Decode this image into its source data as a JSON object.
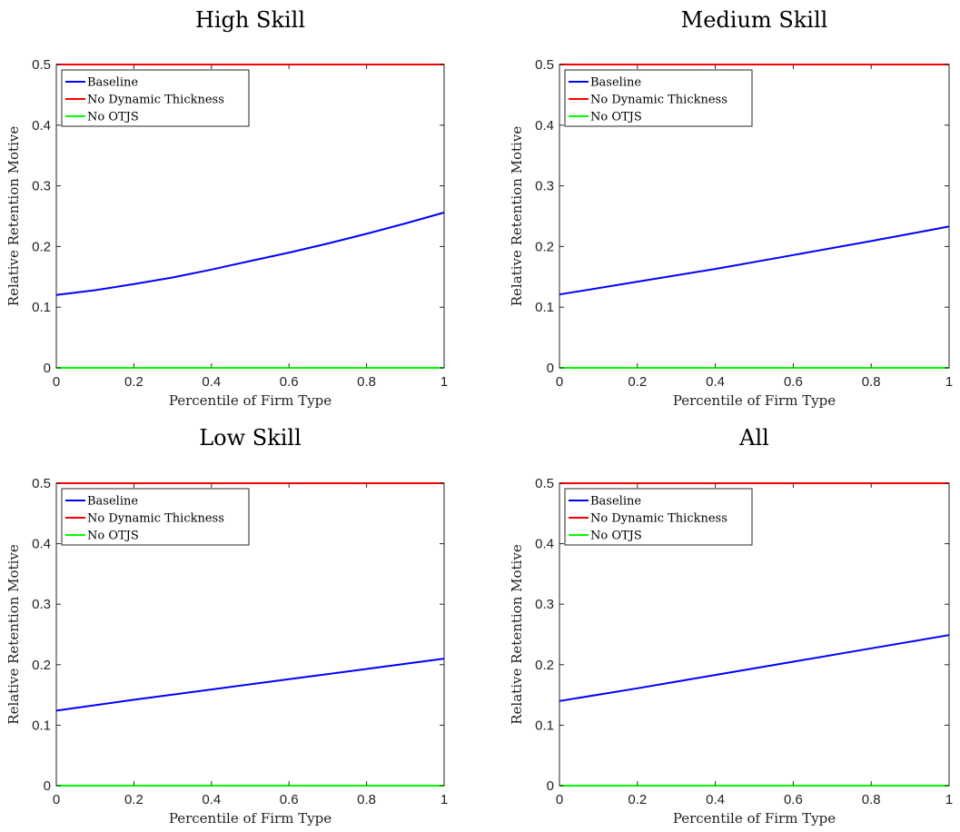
{
  "chart_data": [
    {
      "type": "line",
      "title": "High Skill",
      "xlabel": "Percentile of Firm Type",
      "ylabel": "Relative Retention Motive",
      "xlim": [
        0,
        1
      ],
      "ylim": [
        0,
        0.5
      ],
      "xticks": [
        "0",
        "0.2",
        "0.4",
        "0.6",
        "0.8",
        "1"
      ],
      "yticks": [
        "0",
        "0.1",
        "0.2",
        "0.3",
        "0.4",
        "0.5"
      ],
      "legend_position": "top-left",
      "grid": false,
      "series": [
        {
          "name": "Baseline",
          "color": "#0000ff",
          "x": [
            0,
            0.1,
            0.2,
            0.3,
            0.4,
            0.5,
            0.6,
            0.7,
            0.8,
            0.9,
            1
          ],
          "y": [
            0.12,
            0.128,
            0.138,
            0.149,
            0.162,
            0.176,
            0.19,
            0.205,
            0.221,
            0.238,
            0.256
          ]
        },
        {
          "name": "No Dynamic Thickness",
          "color": "#ff0000",
          "x": [
            0,
            1
          ],
          "y": [
            0.5,
            0.5
          ]
        },
        {
          "name": "No OTJS",
          "color": "#00ff00",
          "x": [
            0,
            1
          ],
          "y": [
            0,
            0
          ]
        }
      ]
    },
    {
      "type": "line",
      "title": "Medium Skill",
      "xlabel": "Percentile of Firm Type",
      "ylabel": "Relative Retention Motive",
      "xlim": [
        0,
        1
      ],
      "ylim": [
        0,
        0.5
      ],
      "xticks": [
        "0",
        "0.2",
        "0.4",
        "0.6",
        "0.8",
        "1"
      ],
      "yticks": [
        "0",
        "0.1",
        "0.2",
        "0.3",
        "0.4",
        "0.5"
      ],
      "legend_position": "top-left",
      "grid": false,
      "series": [
        {
          "name": "Baseline",
          "color": "#0000ff",
          "x": [
            0,
            0.2,
            0.4,
            0.6,
            0.8,
            1
          ],
          "y": [
            0.121,
            0.142,
            0.163,
            0.186,
            0.209,
            0.233
          ]
        },
        {
          "name": "No Dynamic Thickness",
          "color": "#ff0000",
          "x": [
            0,
            1
          ],
          "y": [
            0.5,
            0.5
          ]
        },
        {
          "name": "No OTJS",
          "color": "#00ff00",
          "x": [
            0,
            1
          ],
          "y": [
            0,
            0
          ]
        }
      ]
    },
    {
      "type": "line",
      "title": "Low Skill",
      "xlabel": "Percentile of Firm Type",
      "ylabel": "Relative Retention Motive",
      "xlim": [
        0,
        1
      ],
      "ylim": [
        0,
        0.5
      ],
      "xticks": [
        "0",
        "0.2",
        "0.4",
        "0.6",
        "0.8",
        "1"
      ],
      "yticks": [
        "0",
        "0.1",
        "0.2",
        "0.3",
        "0.4",
        "0.5"
      ],
      "legend_position": "top-left",
      "grid": false,
      "series": [
        {
          "name": "Baseline",
          "color": "#0000ff",
          "x": [
            0,
            0.2,
            0.4,
            0.6,
            0.8,
            1
          ],
          "y": [
            0.124,
            0.142,
            0.159,
            0.176,
            0.193,
            0.21
          ]
        },
        {
          "name": "No Dynamic Thickness",
          "color": "#ff0000",
          "x": [
            0,
            1
          ],
          "y": [
            0.5,
            0.5
          ]
        },
        {
          "name": "No OTJS",
          "color": "#00ff00",
          "x": [
            0,
            1
          ],
          "y": [
            0,
            0
          ]
        }
      ]
    },
    {
      "type": "line",
      "title": "All",
      "xlabel": "Percentile of Firm Type",
      "ylabel": "Relative Retention Motive",
      "xlim": [
        0,
        1
      ],
      "ylim": [
        0,
        0.5
      ],
      "xticks": [
        "0",
        "0.2",
        "0.4",
        "0.6",
        "0.8",
        "1"
      ],
      "yticks": [
        "0",
        "0.1",
        "0.2",
        "0.3",
        "0.4",
        "0.5"
      ],
      "legend_position": "top-left",
      "grid": false,
      "series": [
        {
          "name": "Baseline",
          "color": "#0000ff",
          "x": [
            0,
            0.2,
            0.4,
            0.6,
            0.8,
            1
          ],
          "y": [
            0.14,
            0.161,
            0.183,
            0.205,
            0.227,
            0.249
          ]
        },
        {
          "name": "No Dynamic Thickness",
          "color": "#ff0000",
          "x": [
            0,
            1
          ],
          "y": [
            0.5,
            0.5
          ]
        },
        {
          "name": "No OTJS",
          "color": "#00ff00",
          "x": [
            0,
            1
          ],
          "y": [
            0,
            0
          ]
        }
      ]
    }
  ]
}
